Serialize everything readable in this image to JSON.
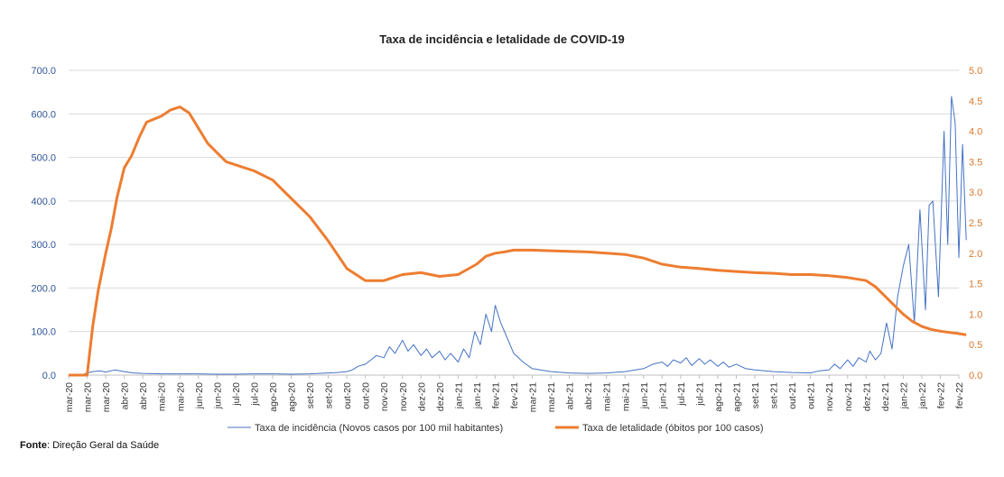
{
  "chart_data": {
    "type": "line",
    "title": "Taxa de incidência e letalidade de COVID-19",
    "left_axis": {
      "min": 0,
      "max": 700,
      "ticks": [
        "0.0",
        "100.0",
        "200.0",
        "300.0",
        "400.0",
        "500.0",
        "600.0",
        "700.0"
      ]
    },
    "right_axis": {
      "min": 0,
      "max": 5,
      "ticks": [
        "0.0",
        "0.5",
        "1.0",
        "1.5",
        "2.0",
        "2.5",
        "3.0",
        "3.5",
        "4.0",
        "4.5",
        "5.0"
      ]
    },
    "x_labels": [
      "mar-20",
      "mar-20",
      "mar-20",
      "abr-20",
      "abr-20",
      "mai-20",
      "mai-20",
      "jun-20",
      "jun-20",
      "jul-20",
      "jul-20",
      "ago-20",
      "ago-20",
      "set-20",
      "set-20",
      "out-20",
      "out-20",
      "nov-20",
      "nov-20",
      "dez-20",
      "dez-20",
      "jan-21",
      "jan-21",
      "fev-21",
      "fev-21",
      "mar-21",
      "mar-21",
      "abr-21",
      "abr-21",
      "mai-21",
      "mai-21",
      "jun-21",
      "jun-21",
      "jul-21",
      "jul-21",
      "ago-21",
      "ago-21",
      "set-21",
      "set-21",
      "out-21",
      "out-21",
      "nov-21",
      "nov-21",
      "dez-21",
      "dez-21",
      "jan-22",
      "jan-22",
      "fev-22",
      "fev-22"
    ],
    "series": [
      {
        "name": "Taxa de incidência (Novos casos por 100 mil habitantes)",
        "axis": "left",
        "color": "#4472c4",
        "x": [
          0,
          0.7,
          1,
          1.3,
          1.7,
          2,
          2.5,
          3,
          3.5,
          4,
          5,
          6,
          7,
          8,
          9,
          10,
          11,
          12,
          13,
          14,
          14.5,
          15,
          15.3,
          15.6,
          16,
          16.3,
          16.6,
          17,
          17.3,
          17.6,
          18,
          18.3,
          18.6,
          19,
          19.3,
          19.6,
          20,
          20.3,
          20.6,
          21,
          21.3,
          21.6,
          21.9,
          22.2,
          22.5,
          22.8,
          23,
          23.3,
          23.6,
          24,
          24.5,
          25,
          26,
          27,
          28,
          29,
          30,
          31,
          31.5,
          32,
          32.3,
          32.6,
          33,
          33.3,
          33.6,
          34,
          34.3,
          34.6,
          35,
          35.3,
          35.6,
          36,
          36.5,
          37,
          38,
          39,
          40,
          40.5,
          41,
          41.3,
          41.6,
          42,
          42.3,
          42.6,
          43,
          43.2,
          43.5,
          43.8,
          44.1,
          44.4,
          44.7,
          45,
          45.3,
          45.6,
          45.9,
          46.2,
          46.4,
          46.6,
          46.9,
          47.2,
          47.4,
          47.6,
          47.8,
          48,
          48.2,
          48.4
        ],
        "values": [
          0,
          0,
          5,
          8,
          10,
          7,
          12,
          8,
          5,
          4,
          3,
          3,
          3,
          2,
          2,
          3,
          3,
          2,
          3,
          5,
          6,
          8,
          12,
          20,
          25,
          35,
          45,
          40,
          65,
          50,
          80,
          55,
          70,
          45,
          60,
          40,
          55,
          35,
          50,
          30,
          60,
          40,
          100,
          70,
          140,
          100,
          160,
          120,
          90,
          50,
          30,
          15,
          8,
          5,
          4,
          5,
          8,
          15,
          25,
          30,
          20,
          35,
          28,
          40,
          22,
          38,
          25,
          35,
          20,
          30,
          18,
          25,
          15,
          12,
          8,
          6,
          5,
          10,
          12,
          25,
          15,
          35,
          20,
          40,
          30,
          55,
          35,
          50,
          120,
          60,
          180,
          250,
          300,
          120,
          380,
          150,
          390,
          400,
          180,
          560,
          300,
          640,
          580,
          270,
          530,
          310
        ]
      },
      {
        "name": "Taxa de letalidade (óbitos por 100 casos)",
        "axis": "right",
        "color": "#ed7d31",
        "x": [
          0,
          1,
          1.3,
          1.6,
          2,
          2.3,
          2.6,
          3,
          3.4,
          3.8,
          4.2,
          4.6,
          5,
          5.5,
          6,
          6.5,
          7,
          7.5,
          8,
          8.5,
          9,
          10,
          11,
          12,
          13,
          14,
          15,
          16,
          17,
          17.5,
          18,
          19,
          20,
          21,
          22,
          22.5,
          23,
          23.5,
          24,
          24.5,
          25,
          26,
          27,
          28,
          29,
          30,
          31,
          32,
          33,
          34,
          35,
          36,
          37,
          38,
          39,
          40,
          41,
          42,
          43,
          43.5,
          44,
          44.5,
          45,
          45.5,
          46,
          46.5,
          47,
          47.5,
          48,
          48.4
        ],
        "values": [
          0,
          0,
          0.8,
          1.4,
          2.0,
          2.4,
          2.9,
          3.4,
          3.6,
          3.9,
          4.15,
          4.2,
          4.25,
          4.35,
          4.4,
          4.3,
          4.05,
          3.8,
          3.65,
          3.5,
          3.45,
          3.35,
          3.2,
          2.9,
          2.6,
          2.2,
          1.75,
          1.55,
          1.55,
          1.6,
          1.65,
          1.68,
          1.62,
          1.65,
          1.82,
          1.95,
          2.0,
          2.02,
          2.05,
          2.05,
          2.05,
          2.04,
          2.03,
          2.02,
          2.0,
          1.98,
          1.92,
          1.82,
          1.77,
          1.75,
          1.72,
          1.7,
          1.68,
          1.67,
          1.65,
          1.65,
          1.63,
          1.6,
          1.55,
          1.45,
          1.3,
          1.15,
          1.0,
          0.88,
          0.8,
          0.75,
          0.72,
          0.7,
          0.68,
          0.66
        ]
      }
    ]
  },
  "source": {
    "label": "Fonte",
    "text": ": Direção Geral da Saúde"
  }
}
